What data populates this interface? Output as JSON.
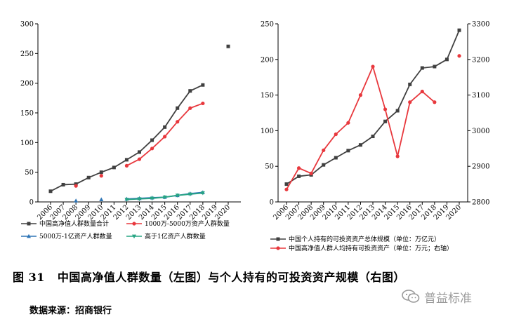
{
  "caption": {
    "figure_no": "图 31",
    "text": "中国高净值人群数量（左图）与个人持有的可投资资产规模（右图）"
  },
  "source": "数据来源：招商银行",
  "watermark": "普益标准",
  "colors": {
    "gray": "#404040",
    "red": "#e8383d",
    "blue": "#2e75b6",
    "teal": "#27a583"
  },
  "chart_data": [
    {
      "type": "line",
      "title": "",
      "xlabel": "",
      "ylabel": "",
      "categories": [
        "2006",
        "2007",
        "2008",
        "2009",
        "2010",
        "2011",
        "2012",
        "2013",
        "2014",
        "2015",
        "2016",
        "2017",
        "2018",
        "2019",
        "2020"
      ],
      "ylim": [
        0,
        300
      ],
      "yticks": [
        0,
        50,
        100,
        150,
        200,
        250,
        300
      ],
      "legend_position": "bottom",
      "series": [
        {
          "name": "中国高净值人群数量合计",
          "color": "#404040",
          "marker": "square",
          "values": [
            18,
            29,
            30,
            41,
            50,
            58,
            71,
            84,
            104,
            126,
            158,
            187,
            197,
            null,
            262
          ]
        },
        {
          "name": "1000万-5000万资产人群数量",
          "color": "#e8383d",
          "marker": "circle",
          "values": [
            null,
            null,
            27,
            null,
            44,
            null,
            61,
            72,
            90,
            110,
            135,
            158,
            166,
            null,
            null
          ]
        },
        {
          "name": "5000万-1亿资产人群数量",
          "color": "#2e75b6",
          "marker": "triangle",
          "values": [
            null,
            null,
            2,
            null,
            4,
            null,
            5,
            6,
            7,
            8,
            11,
            14,
            16,
            null,
            null
          ]
        },
        {
          "name": "高于1亿资产人群数量",
          "color": "#27a583",
          "marker": "triangle-down",
          "values": [
            null,
            null,
            null,
            null,
            null,
            null,
            4,
            5,
            6,
            8,
            11,
            13,
            15,
            null,
            null
          ]
        }
      ]
    },
    {
      "type": "line",
      "title": "",
      "xlabel": "",
      "ylabel": "",
      "categories": [
        "2006",
        "2007",
        "2008",
        "2009",
        "2010",
        "2011",
        "2012",
        "2013",
        "2014",
        "2015",
        "2016",
        "2017",
        "2018",
        "2019",
        "2020"
      ],
      "ylim_left": [
        0,
        250
      ],
      "yticks_left": [
        0,
        50,
        100,
        150,
        200,
        250
      ],
      "ylim_right": [
        2800,
        3300
      ],
      "yticks_right": [
        2800,
        2900,
        3000,
        3100,
        3200,
        3300
      ],
      "legend_position": "bottom",
      "series": [
        {
          "name": "中国个人持有的可投资资产总体规模（单位：万亿元）",
          "axis": "left",
          "color": "#404040",
          "marker": "square",
          "values": [
            25,
            36,
            38,
            52,
            62,
            72,
            80,
            92,
            113,
            128,
            165,
            188,
            190,
            200,
            241
          ]
        },
        {
          "name": "中国高净值人群人均持有可投资资产（单位：万元；右轴）",
          "axis": "right",
          "color": "#e8383d",
          "marker": "circle",
          "values": [
            2835,
            2895,
            2880,
            2945,
            2990,
            3022,
            3100,
            3180,
            3060,
            2928,
            3080,
            3110,
            3080,
            null,
            3210
          ]
        }
      ]
    }
  ]
}
